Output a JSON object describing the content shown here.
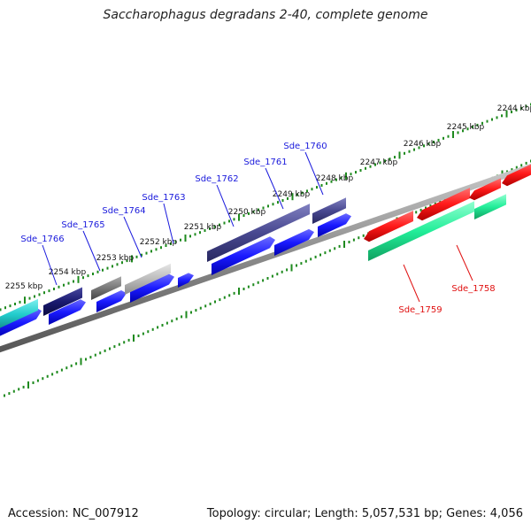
{
  "title": "Saccharophagus degradans 2-40, complete genome",
  "footer": {
    "accession": "Accession: NC_007912",
    "stats": "Topology: circular; Length: 5,057,531 bp; Genes: 4,056"
  },
  "ruler_labels": [
    "2244 kbp",
    "2245 kbp",
    "2246 kbp",
    "2247 kbp",
    "2248 kbp",
    "2249 kbp",
    "2250 kbp",
    "2251 kbp",
    "2252 kbp",
    "2253 kbp",
    "2254 kbp",
    "2255 kbp"
  ],
  "gene_labels": [
    {
      "text": "Sde_1766",
      "strand": "minus",
      "color": "#1a1adc"
    },
    {
      "text": "Sde_1765",
      "strand": "minus",
      "color": "#1a1adc"
    },
    {
      "text": "Sde_1764",
      "strand": "minus",
      "color": "#1a1adc"
    },
    {
      "text": "Sde_1763",
      "strand": "minus",
      "color": "#1a1adc"
    },
    {
      "text": "Sde_1762",
      "strand": "minus",
      "color": "#1a1adc"
    },
    {
      "text": "Sde_1761",
      "strand": "minus",
      "color": "#1a1adc"
    },
    {
      "text": "Sde_1760",
      "strand": "minus",
      "color": "#1a1adc"
    },
    {
      "text": "Sde_1759",
      "strand": "plus",
      "color": "#e01010"
    },
    {
      "text": "Sde_1758",
      "strand": "plus",
      "color": "#e01010"
    }
  ],
  "colors": {
    "backbone": "#8a8a8a",
    "ruler_ticks": "#1e8a1e",
    "cds_blue": "#1a1aff",
    "red": "#ff1a1a",
    "teal": "#22ee99",
    "cyan": "#22cccc",
    "navy": "#1a1a70",
    "slate": "#484890",
    "gray": "#777777",
    "lightgray": "#bbbbbb"
  }
}
